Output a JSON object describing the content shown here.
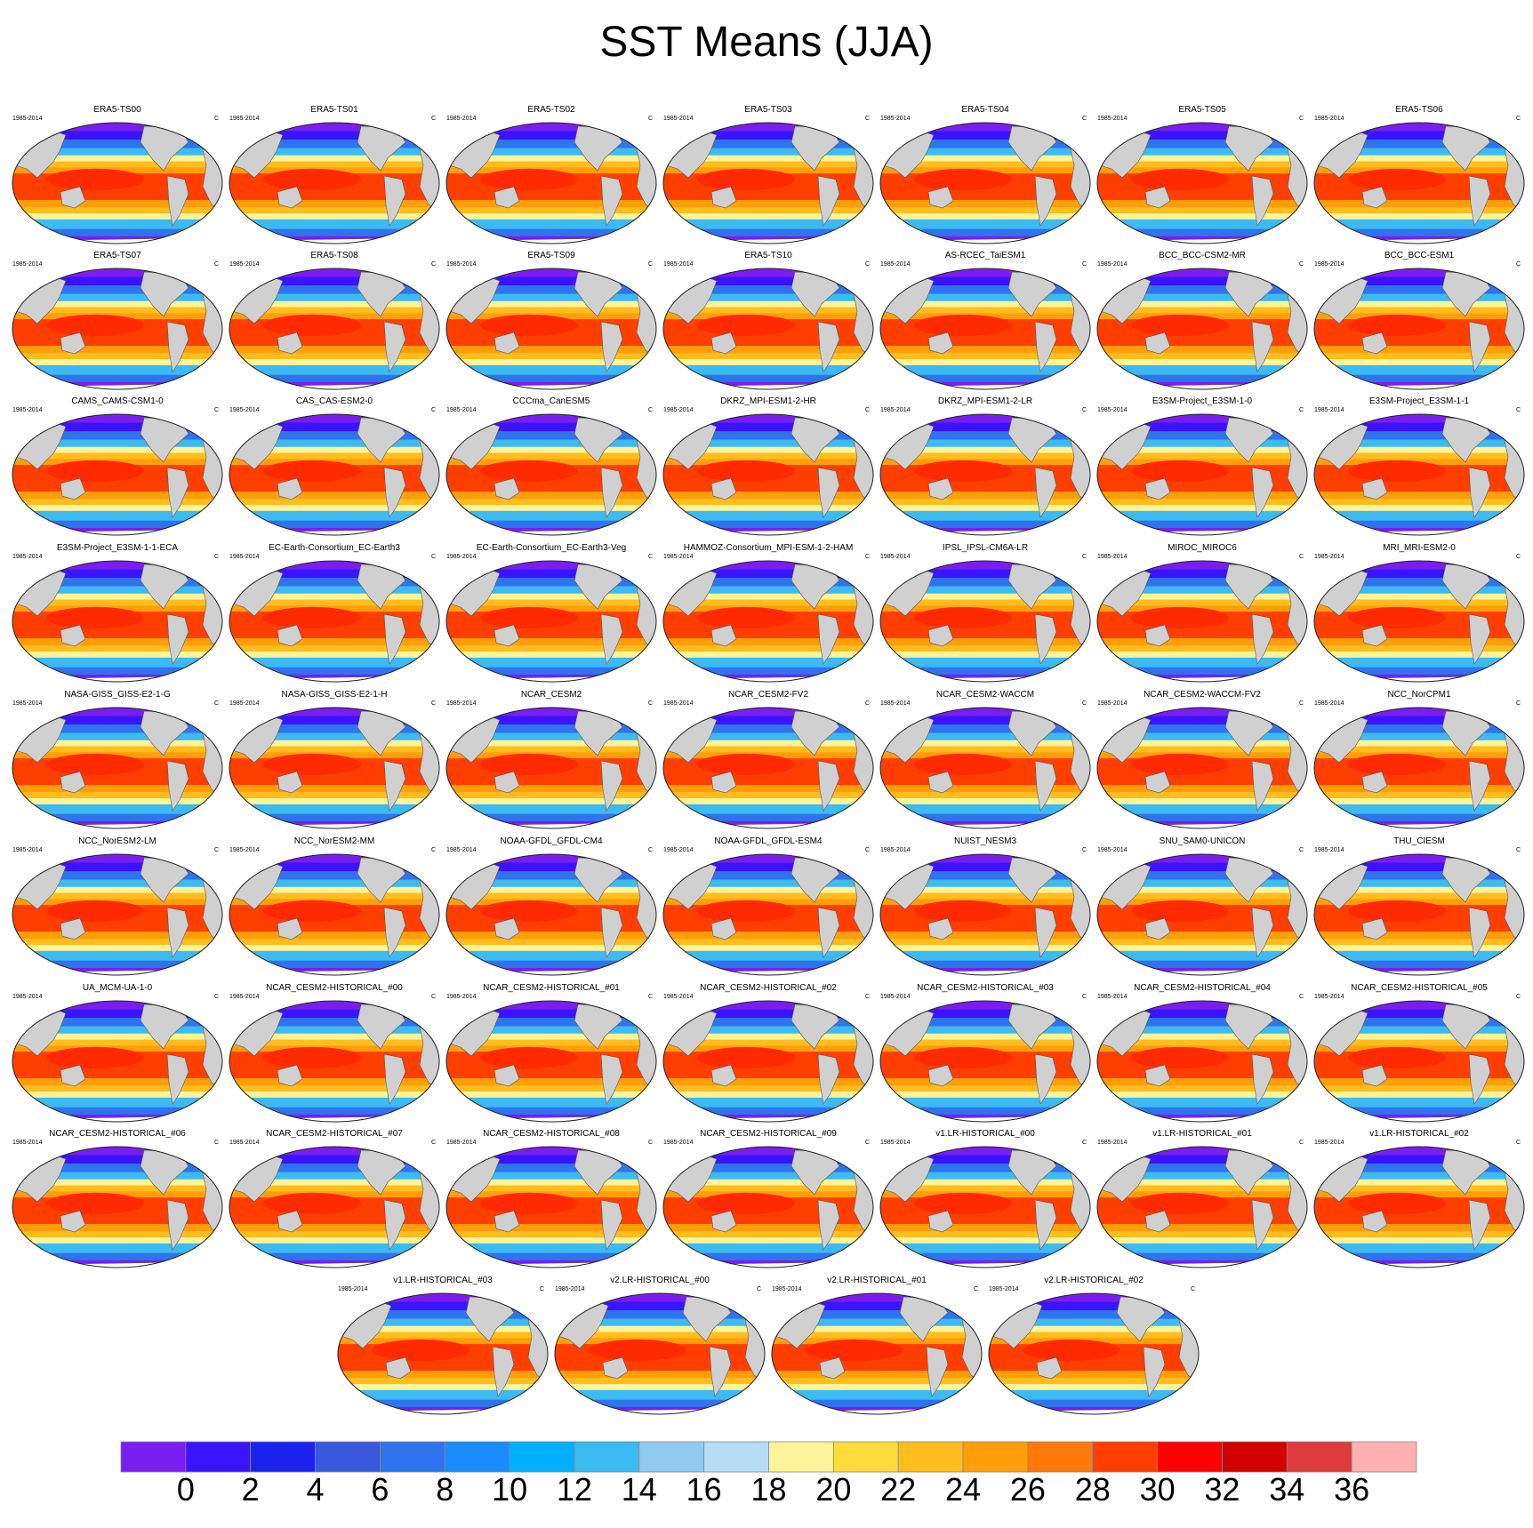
{
  "title": "SST Means (JJA)",
  "period": "1985-2014",
  "units": "C",
  "panels": [
    "ERA5-TS00",
    "ERA5-TS01",
    "ERA5-TS02",
    "ERA5-TS03",
    "ERA5-TS04",
    "ERA5-TS05",
    "ERA5-TS06",
    "ERA5-TS07",
    "ERA5-TS08",
    "ERA5-TS09",
    "ERA5-TS10",
    "AS-RCEC_TaiESM1",
    "BCC_BCC-CSM2-MR",
    "BCC_BCC-ESM1",
    "CAMS_CAMS-CSM1-0",
    "CAS_CAS-ESM2-0",
    "CCCma_CanESM5",
    "DKRZ_MPI-ESM1-2-HR",
    "DKRZ_MPI-ESM1-2-LR",
    "E3SM-Project_E3SM-1-0",
    "E3SM-Project_E3SM-1-1",
    "E3SM-Project_E3SM-1-1-ECA",
    "EC-Earth-Consortium_EC-Earth3",
    "EC-Earth-Consortium_EC-Earth3-Veg",
    "HAMMOZ-Consortium_MPI-ESM-1-2-HAM",
    "IPSL_IPSL-CM6A-LR",
    "MIROC_MIROC6",
    "MRI_MRI-ESM2-0",
    "NASA-GISS_GISS-E2-1-G",
    "NASA-GISS_GISS-E2-1-H",
    "NCAR_CESM2",
    "NCAR_CESM2-FV2",
    "NCAR_CESM2-WACCM",
    "NCAR_CESM2-WACCM-FV2",
    "NCC_NorCPM1",
    "NCC_NorESM2-LM",
    "NCC_NorESM2-MM",
    "NOAA-GFDL_GFDL-CM4",
    "NOAA-GFDL_GFDL-ESM4",
    "NUIST_NESM3",
    "SNU_SAM0-UNICON",
    "THU_CIESM",
    "UA_MCM-UA-1-0",
    "NCAR_CESM2-HISTORICAL_#00",
    "NCAR_CESM2-HISTORICAL_#01",
    "NCAR_CESM2-HISTORICAL_#02",
    "NCAR_CESM2-HISTORICAL_#03",
    "NCAR_CESM2-HISTORICAL_#04",
    "NCAR_CESM2-HISTORICAL_#05",
    "NCAR_CESM2-HISTORICAL_#06",
    "NCAR_CESM2-HISTORICAL_#07",
    "NCAR_CESM2-HISTORICAL_#08",
    "NCAR_CESM2-HISTORICAL_#09",
    "v1.LR-HISTORICAL_#00",
    "v1.LR-HISTORICAL_#01",
    "v1.LR-HISTORICAL_#02",
    "v1.LR-HISTORICAL_#03",
    "v2.LR-HISTORICAL_#00",
    "v2.LR-HISTORICAL_#01",
    "v2.LR-HISTORICAL_#02"
  ],
  "colorbar": {
    "labels": [
      "0",
      "2",
      "4",
      "6",
      "8",
      "10",
      "12",
      "14",
      "16",
      "18",
      "20",
      "22",
      "24",
      "26",
      "28",
      "30",
      "32",
      "34",
      "36"
    ],
    "colors": [
      "#7a1ef0",
      "#3a14ff",
      "#1c22ee",
      "#3a58dc",
      "#2f74ee",
      "#1a8cff",
      "#00b0ff",
      "#3cbaf2",
      "#90caee",
      "#b6dcf6",
      "#fff49a",
      "#ffdc3e",
      "#ffbe1e",
      "#ff9e0a",
      "#ff780a",
      "#ff3e00",
      "#ff0000",
      "#d20000",
      "#dc3c3c",
      "#ffb0b0"
    ]
  }
}
